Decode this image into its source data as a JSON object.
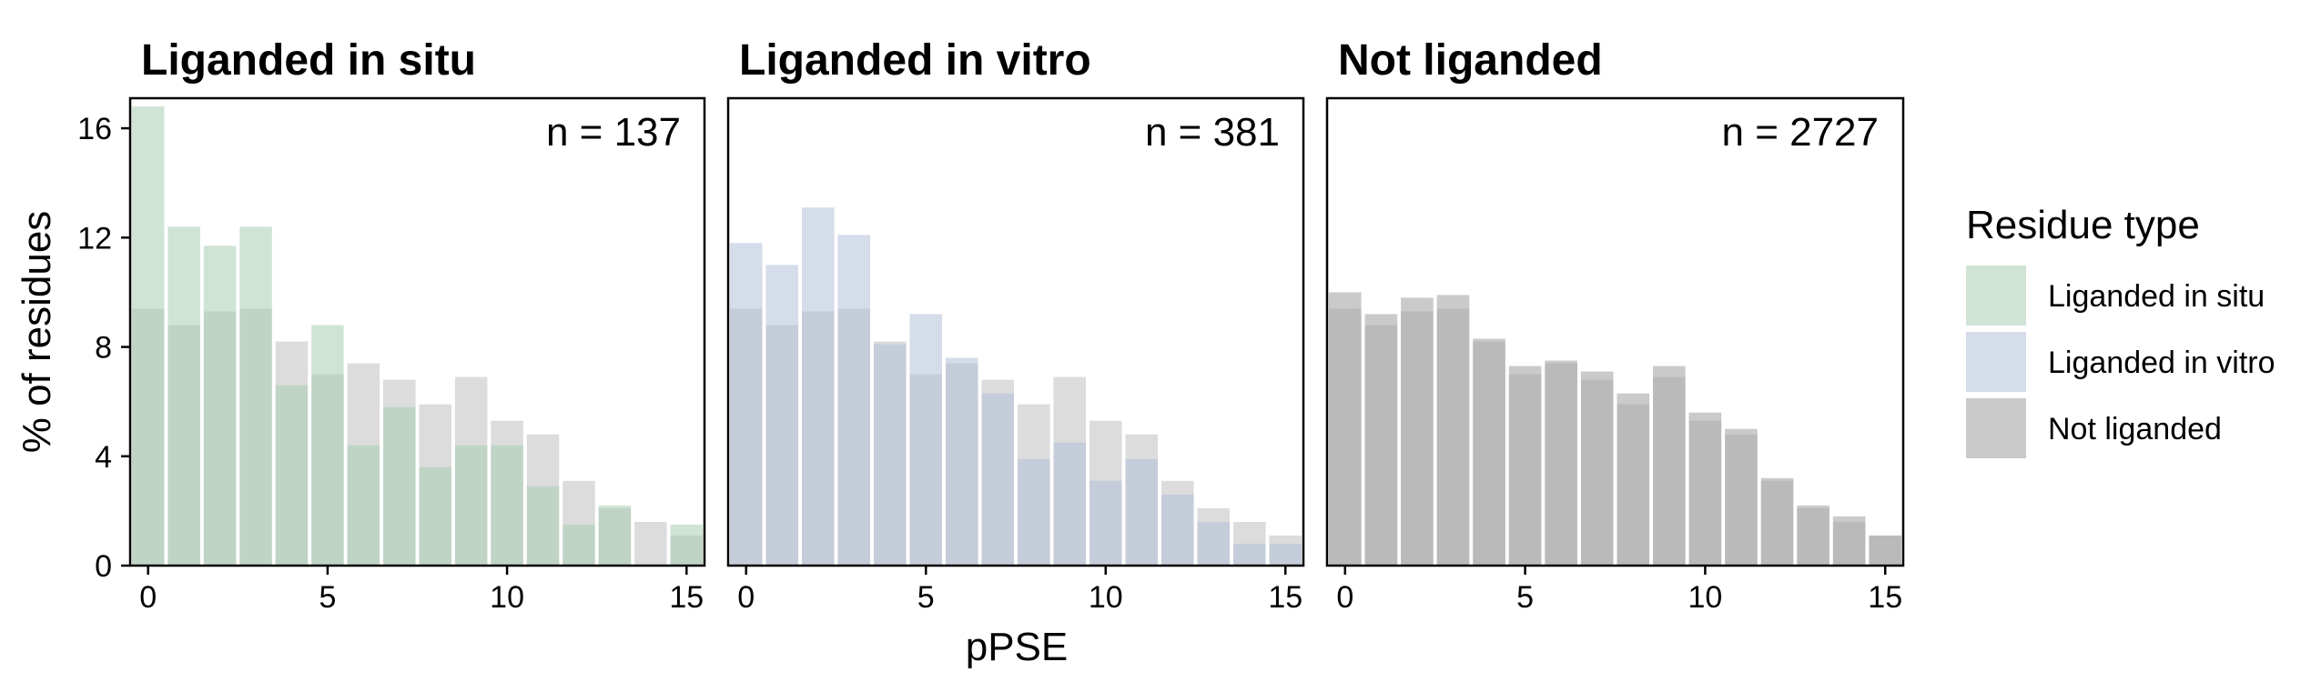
{
  "chart_data": {
    "type": "bar",
    "xlabel": "pPSE",
    "ylabel": "% of residues",
    "xlim": [
      -0.5,
      15.5
    ],
    "ylim": [
      0,
      17.1
    ],
    "xticks": [
      0,
      5,
      10,
      15
    ],
    "yticks": [
      0,
      4,
      8,
      12,
      16
    ],
    "x": [
      0,
      1,
      2,
      3,
      4,
      5,
      6,
      7,
      8,
      9,
      10,
      11,
      12,
      13,
      14,
      15
    ],
    "background_series": "Not liganded",
    "background_values": [
      9.4,
      8.8,
      9.3,
      9.4,
      8.2,
      7.0,
      7.4,
      6.8,
      5.9,
      6.9,
      5.3,
      4.8,
      3.1,
      2.1,
      1.6,
      1.1
    ],
    "panels": [
      {
        "title": "Liganded in situ",
        "n_label": "n = 137",
        "series": "Liganded in situ",
        "values": [
          16.8,
          12.4,
          11.7,
          12.4,
          6.6,
          8.8,
          4.4,
          5.8,
          3.6,
          4.4,
          4.4,
          2.9,
          1.5,
          2.2,
          0.0,
          1.5
        ]
      },
      {
        "title": "Liganded in vitro",
        "n_label": "n = 381",
        "series": "Liganded in vitro",
        "values": [
          11.8,
          11.0,
          13.1,
          12.1,
          8.1,
          9.2,
          7.6,
          6.3,
          3.9,
          4.5,
          3.1,
          3.9,
          2.6,
          1.6,
          0.8,
          0.8
        ]
      },
      {
        "title": "Not liganded",
        "n_label": "n = 2727",
        "series": "Not liganded",
        "values": [
          10.0,
          9.2,
          9.8,
          9.9,
          8.3,
          7.3,
          7.5,
          7.1,
          6.3,
          7.3,
          5.6,
          5.0,
          3.2,
          2.2,
          1.8,
          1.1
        ]
      }
    ],
    "legend": {
      "title": "Residue type",
      "position": "right",
      "items": [
        {
          "label": "Liganded in situ",
          "color": "#a9cdb2"
        },
        {
          "label": "Liganded in vitro",
          "color": "#b3c0d8"
        },
        {
          "label": "Not liganded",
          "color": "#9e9e9e"
        }
      ]
    },
    "colors": {
      "Liganded in situ": "#a9cdb2",
      "Liganded in vitro": "#b3c0d8",
      "Not liganded": "#9e9e9e",
      "background_bar": "#d0d0d0"
    }
  }
}
